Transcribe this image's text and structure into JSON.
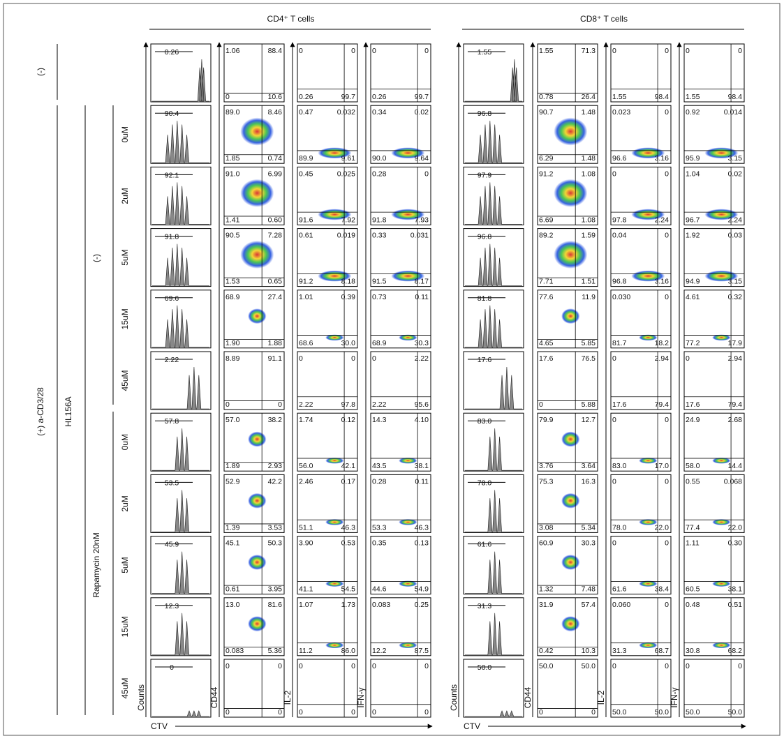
{
  "stimulation": {
    "negative": "(-)",
    "positive": "(+) a-CD3/28"
  },
  "drug_label": "HL156A",
  "conditions": [
    {
      "label": "(-)"
    },
    {
      "label": "Rapamycin  20nM"
    }
  ],
  "doses": [
    "0uM",
    "2uM",
    "5uM",
    "15uM",
    "45uM"
  ],
  "axes": {
    "counts": "Counts",
    "ctv": "CTV",
    "cd44": "CD44",
    "il2": "IL-2",
    "ifng": "IFN-γ"
  },
  "panels": [
    {
      "title": "CD4⁺ T cells",
      "rows": [
        {
          "hist": "0.26",
          "cd44": [
            "1.06",
            "88.4",
            "0",
            "10.6"
          ],
          "il2": [
            "0",
            "0",
            "0.26",
            "99.7"
          ],
          "ifng": [
            "0",
            "0",
            "0.26",
            "99.7"
          ]
        },
        {
          "hist": "90.4",
          "cd44": [
            "89.0",
            "8.46",
            "1.85",
            "0.74"
          ],
          "il2": [
            "0.47",
            "0.032",
            "89.9",
            "9.61"
          ],
          "ifng": [
            "0.34",
            "0.02",
            "90.0",
            "9.64"
          ]
        },
        {
          "hist": "92.1",
          "cd44": [
            "91.0",
            "6.99",
            "1.41",
            "0.60"
          ],
          "il2": [
            "0.45",
            "0.025",
            "91.6",
            "7.92"
          ],
          "ifng": [
            "0.28",
            "0",
            "91.8",
            "7.93"
          ]
        },
        {
          "hist": "91.8",
          "cd44": [
            "90.5",
            "7.28",
            "1.53",
            "0.65"
          ],
          "il2": [
            "0.61",
            "0.019",
            "91.2",
            "8.18"
          ],
          "ifng": [
            "0.33",
            "0.031",
            "91.5",
            "8.17"
          ]
        },
        {
          "hist": "69.6",
          "cd44": [
            "68.9",
            "27.4",
            "1.90",
            "1.88"
          ],
          "il2": [
            "1.01",
            "0.39",
            "68.6",
            "30.0"
          ],
          "ifng": [
            "0.73",
            "0.11",
            "68.9",
            "30.3"
          ]
        },
        {
          "hist": "2.22",
          "cd44": [
            "8.89",
            "91.1",
            "0",
            "0"
          ],
          "il2": [
            "0",
            "0",
            "2.22",
            "97.8"
          ],
          "ifng": [
            "0",
            "2.22",
            "2.22",
            "95.6"
          ]
        },
        {
          "hist": "57.8",
          "cd44": [
            "57.0",
            "38.2",
            "1.89",
            "2.93"
          ],
          "il2": [
            "1.74",
            "0.12",
            "56.0",
            "42.1"
          ],
          "ifng": [
            "14.3",
            "4.10",
            "43.5",
            "38.1"
          ]
        },
        {
          "hist": "53.5",
          "cd44": [
            "52.9",
            "42.2",
            "1.39",
            "3.53"
          ],
          "il2": [
            "2.46",
            "0.17",
            "51.1",
            "46.3"
          ],
          "ifng": [
            "0.28",
            "0.11",
            "53.3",
            "46.3"
          ]
        },
        {
          "hist": "45.9",
          "cd44": [
            "45.1",
            "50.3",
            "0.61",
            "3.95"
          ],
          "il2": [
            "3.90",
            "0.53",
            "41.1",
            "54.5"
          ],
          "ifng": [
            "0.35",
            "0.13",
            "44.6",
            "54.9"
          ]
        },
        {
          "hist": "12.3",
          "cd44": [
            "13.0",
            "81.6",
            "0.083",
            "5.36"
          ],
          "il2": [
            "1.07",
            "1.73",
            "11.2",
            "86.0"
          ],
          "ifng": [
            "0.083",
            "0.25",
            "12.2",
            "87.5"
          ]
        },
        {
          "hist": "0",
          "cd44": [
            "0",
            "0",
            "0",
            "0"
          ],
          "il2": [
            "0",
            "0",
            "0",
            "0"
          ],
          "ifng": [
            "0",
            "0",
            "0",
            "0"
          ]
        }
      ]
    },
    {
      "title": "CD8⁺ T cells",
      "rows": [
        {
          "hist": "1.55",
          "cd44": [
            "1.55",
            "71.3",
            "0.78",
            "26.4"
          ],
          "il2": [
            "0",
            "0",
            "1.55",
            "98.4"
          ],
          "ifng": [
            "0",
            "0",
            "1.55",
            "98.4"
          ]
        },
        {
          "hist": "96.8",
          "cd44": [
            "90.7",
            "1.48",
            "6.29",
            "1.48"
          ],
          "il2": [
            "0.023",
            "0",
            "96.6",
            "3.16"
          ],
          "ifng": [
            "0.92",
            "0.014",
            "95.9",
            "3.15"
          ]
        },
        {
          "hist": "97.9",
          "cd44": [
            "91.2",
            "1.08",
            "6.69",
            "1.08"
          ],
          "il2": [
            "0",
            "0",
            "97.8",
            "2.24"
          ],
          "ifng": [
            "1.04",
            "0.02",
            "96.7",
            "2.24"
          ]
        },
        {
          "hist": "96.8",
          "cd44": [
            "89.2",
            "1.59",
            "7.71",
            "1.51"
          ],
          "il2": [
            "0.04",
            "0",
            "96.8",
            "3.16"
          ],
          "ifng": [
            "1.92",
            "0.03",
            "94.9",
            "3.15"
          ]
        },
        {
          "hist": "81.8",
          "cd44": [
            "77.6",
            "11.9",
            "4.65",
            "5.85"
          ],
          "il2": [
            "0.030",
            "0",
            "81.7",
            "18.2"
          ],
          "ifng": [
            "4.61",
            "0.32",
            "77.2",
            "17.9"
          ]
        },
        {
          "hist": "17.6",
          "cd44": [
            "17.6",
            "76.5",
            "0",
            "5.88"
          ],
          "il2": [
            "0",
            "2.94",
            "17.6",
            "79.4"
          ],
          "ifng": [
            "0",
            "2.94",
            "17.6",
            "79.4"
          ]
        },
        {
          "hist": "83.0",
          "cd44": [
            "79.9",
            "12.7",
            "3.76",
            "3.64"
          ],
          "il2": [
            "0",
            "0",
            "83.0",
            "17.0"
          ],
          "ifng": [
            "24.9",
            "2.68",
            "58.0",
            "14.4"
          ]
        },
        {
          "hist": "78.0",
          "cd44": [
            "75.3",
            "16.3",
            "3.08",
            "5.34"
          ],
          "il2": [
            "0",
            "0",
            "78.0",
            "22.0"
          ],
          "ifng": [
            "0.55",
            "0.068",
            "77.4",
            "22.0"
          ]
        },
        {
          "hist": "61.6",
          "cd44": [
            "60.9",
            "30.3",
            "1.32",
            "7.48"
          ],
          "il2": [
            "0",
            "0",
            "61.6",
            "38.4"
          ],
          "ifng": [
            "1.11",
            "0.30",
            "60.5",
            "38.1"
          ]
        },
        {
          "hist": "31.3",
          "cd44": [
            "31.9",
            "57.4",
            "0.42",
            "10.3"
          ],
          "il2": [
            "0.060",
            "0",
            "31.3",
            "68.7"
          ],
          "ifng": [
            "0.48",
            "0.51",
            "30.8",
            "68.2"
          ]
        },
        {
          "hist": "50.0",
          "cd44": [
            "50.0",
            "50.0",
            "0",
            "0"
          ],
          "il2": [
            "0",
            "0",
            "50.0",
            "50.0"
          ],
          "ifng": [
            "0",
            "0",
            "50.0",
            "50.0"
          ]
        }
      ]
    }
  ]
}
